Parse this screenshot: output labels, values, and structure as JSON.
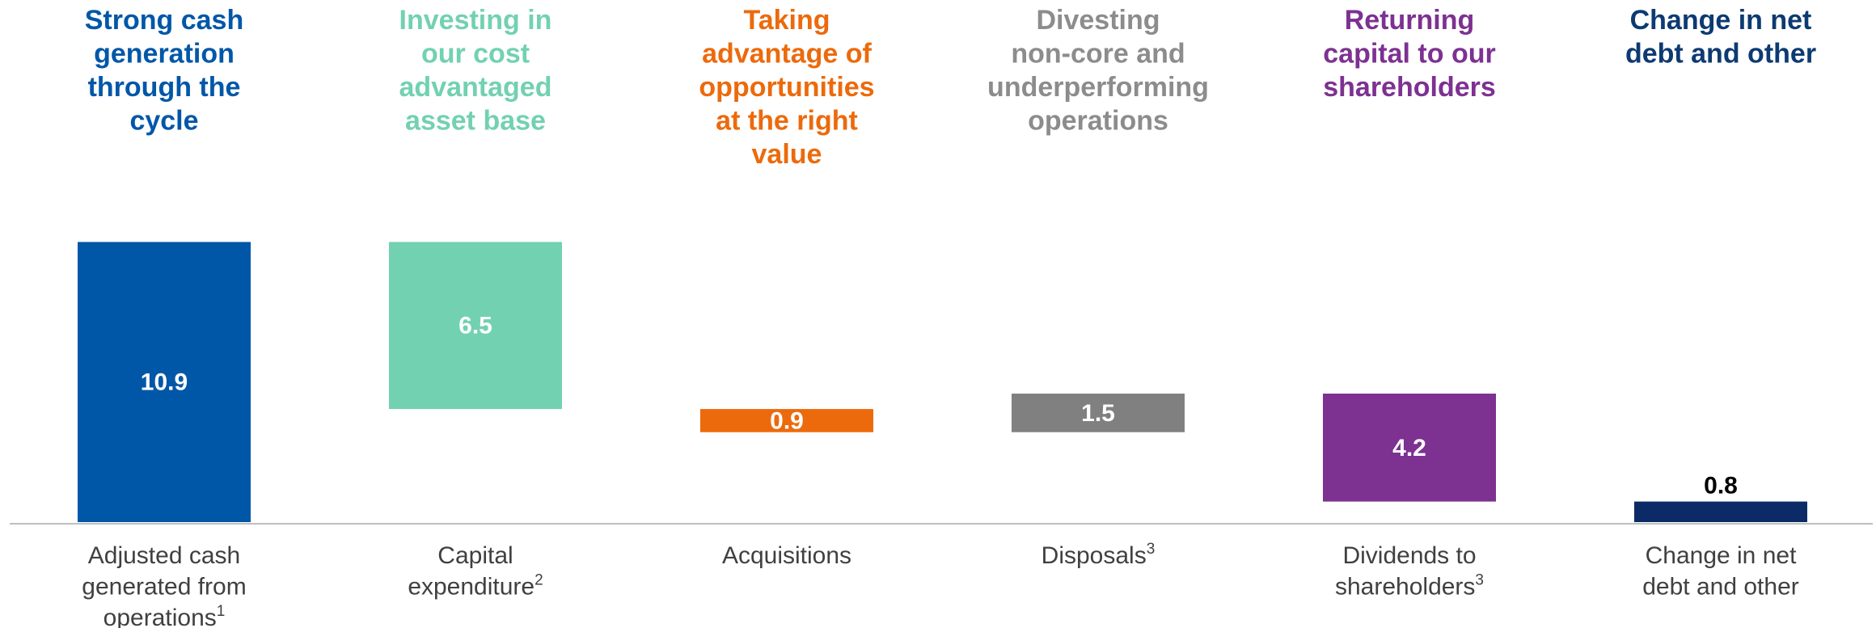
{
  "chart_data": {
    "type": "bar",
    "subtype": "waterfall",
    "categories": [
      {
        "lines": [
          "Adjusted cash",
          "generated from",
          "operations"
        ],
        "sup": "1"
      },
      {
        "lines": [
          "Capital",
          "expenditure"
        ],
        "sup": "2"
      },
      {
        "lines": [
          "Acquisitions"
        ],
        "sup": ""
      },
      {
        "lines": [
          "Disposals"
        ],
        "sup": "3"
      },
      {
        "lines": [
          "Dividends to",
          "shareholders"
        ],
        "sup": "3"
      },
      {
        "lines": [
          "Change in net",
          "debt and other"
        ],
        "sup": ""
      }
    ],
    "headers": [
      {
        "lines": [
          "Strong cash",
          "generation",
          "through the",
          "cycle"
        ],
        "color": "#0057a8"
      },
      {
        "lines": [
          "Investing in",
          "our cost",
          "advantaged",
          "asset base"
        ],
        "color": "#72d1b0"
      },
      {
        "lines": [
          "Taking",
          "advantage of",
          "opportunities",
          "at the right",
          "value"
        ],
        "color": "#ec6a0c"
      },
      {
        "lines": [
          "Divesting",
          "non-core and",
          "underperforming",
          "operations"
        ],
        "color": "#8c8c8c"
      },
      {
        "lines": [
          "Returning",
          "capital to our",
          "shareholders"
        ],
        "color": "#7d3191"
      },
      {
        "lines": [
          "Change in net",
          "debt and other"
        ],
        "color": "#0d3a72"
      }
    ],
    "values": [
      10.9,
      -6.5,
      -0.9,
      1.5,
      -4.2,
      -0.8
    ],
    "labels": [
      "10.9",
      "6.5",
      "0.9",
      "1.5",
      "4.2",
      "0.8"
    ],
    "colors": [
      "#0057a8",
      "#72d1b0",
      "#ec6a0c",
      "#808080",
      "#7d3191",
      "#0b2a66"
    ],
    "label_colors": [
      "#ffffff",
      "#ffffff",
      "#ffffff",
      "#ffffff",
      "#ffffff",
      "#000000"
    ],
    "grid": false,
    "legend": "none"
  }
}
